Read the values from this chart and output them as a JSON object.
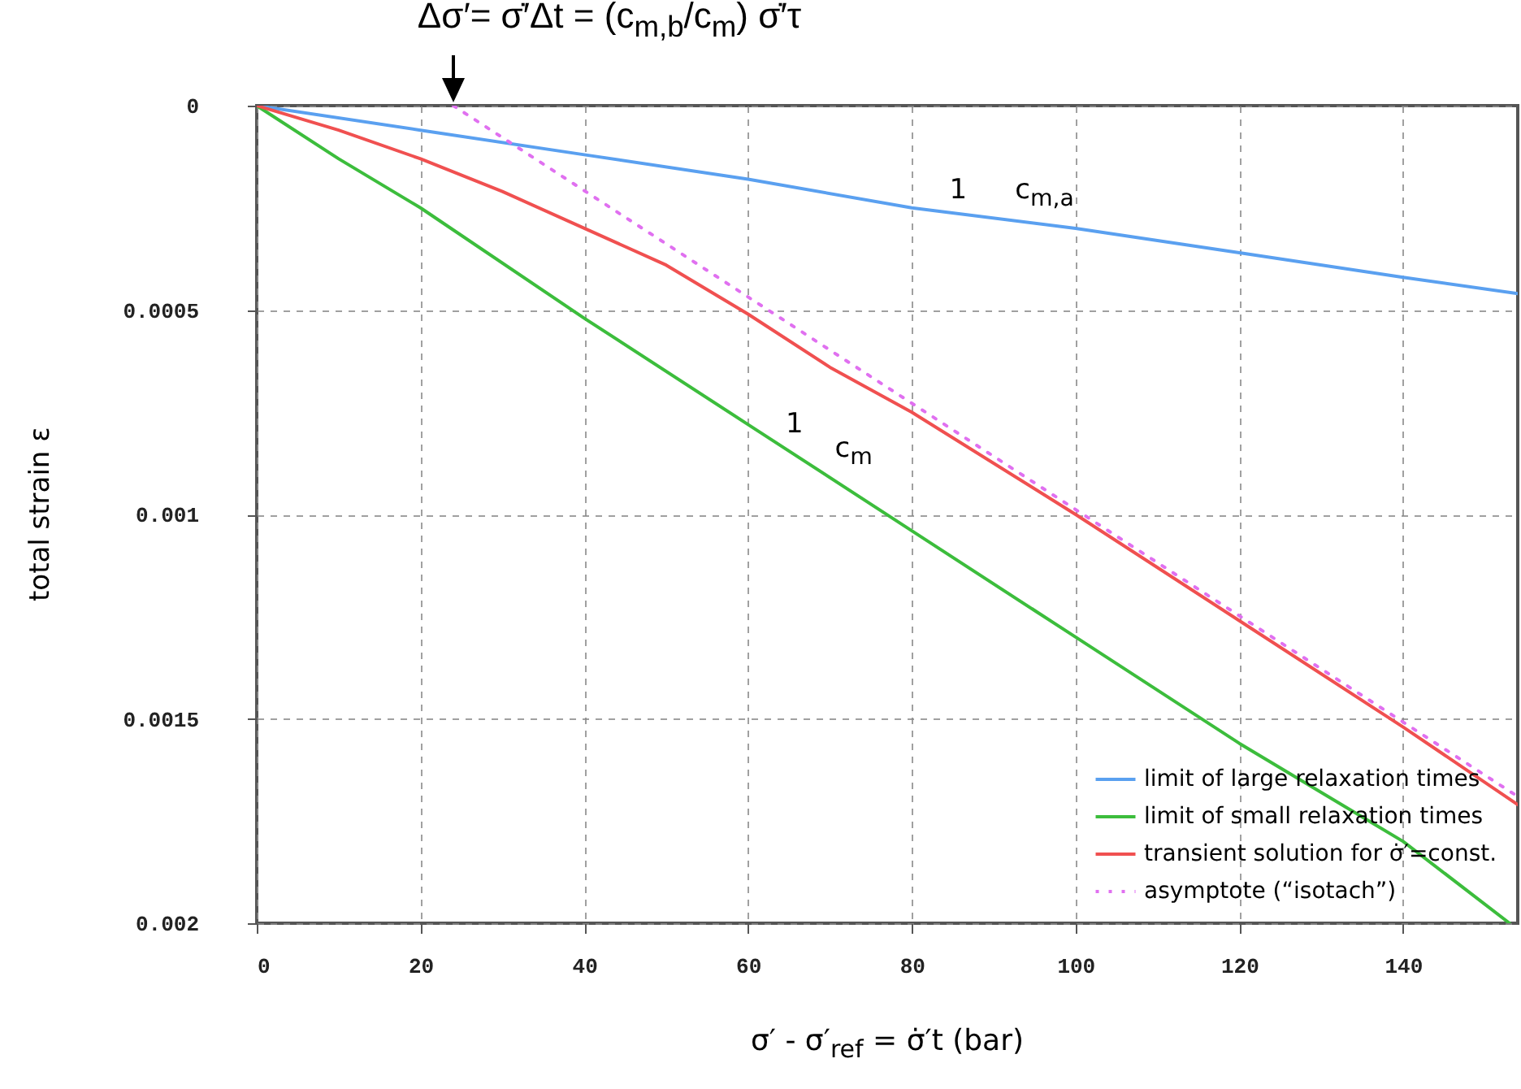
{
  "chart_data": {
    "type": "line",
    "xlabel": "σ′ - σ′$_{ref}$ = σ̇′t   (bar)",
    "ylabel": "total strain   ε",
    "xlim": [
      0,
      154
    ],
    "xticks": [
      0,
      20,
      40,
      60,
      80,
      100,
      120,
      140
    ],
    "ylim": [
      0.002,
      0
    ],
    "yticks": [
      0,
      0.0005,
      0.001,
      0.0015,
      0.002
    ],
    "grid": true,
    "legend": "bottom right",
    "marker": "none",
    "series": [
      {
        "name": "limit of large relaxation times",
        "color": "#5aa0f0",
        "x": [
          0,
          20,
          40,
          60,
          80,
          100,
          120,
          140,
          154
        ],
        "values": [
          0,
          6e-05,
          0.00012,
          0.00018,
          0.00025,
          0.0003,
          0.00036,
          0.00042,
          0.00046
        ]
      },
      {
        "name": "limit of small relaxation times",
        "color": "#3cbd3c",
        "x": [
          0,
          10,
          20,
          40,
          60,
          80,
          100,
          120,
          140,
          153
        ],
        "values": [
          0,
          0.00013,
          0.00025,
          0.00052,
          0.00078,
          0.00104,
          0.0013,
          0.00156,
          0.0018,
          0.002
        ]
      },
      {
        "name": "transient solution for σ̇′=const.",
        "color": "#f05050",
        "x": [
          0,
          10,
          20,
          30,
          40,
          50,
          60,
          70,
          80,
          100,
          120,
          140,
          154
        ],
        "values": [
          0,
          6e-05,
          0.00013,
          0.00021,
          0.0003,
          0.00039,
          0.00051,
          0.00064,
          0.00075,
          0.001,
          0.00126,
          0.00152,
          0.00171
        ]
      },
      {
        "name": "asymptote (“isotach”)",
        "color": "#e070f0",
        "line_style": "dotted",
        "x": [
          24,
          154
        ],
        "values": [
          0,
          0.00169
        ]
      }
    ],
    "annotations": [
      {
        "text": "Δσ′= σ̇′Δt = (c$_{m,b}$/c$_{m}$) σ̇′τ",
        "x": 24,
        "y": 0
      },
      {
        "text": "1",
        "x": 84,
        "y": 0.00026
      },
      {
        "text": "c$_{m,a}$",
        "x": 92,
        "y": 0.00028
      },
      {
        "text": "1",
        "x": 64,
        "y": 0.00083
      },
      {
        "text": "c$_{m}$",
        "x": 70,
        "y": 0.00091
      }
    ]
  }
}
